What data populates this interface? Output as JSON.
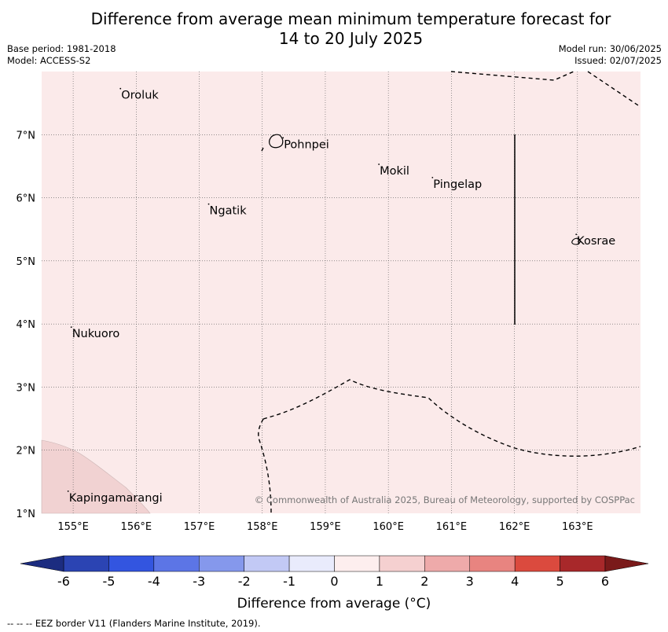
{
  "title_line1": "Difference from average mean minimum temperature forecast for",
  "title_line2": "14 to 20 July 2025",
  "base_period": "Base period: 1981-2018",
  "model": "Model: ACCESS-S2",
  "model_run": "Model run: 30/06/2025",
  "issued": "Issued: 02/07/2025",
  "copyright": "© Commonwealth of Australia 2025, Bureau of Meteorology, supported by COSPPac",
  "colorbar_label": "Difference from average (°C)",
  "footer_note": "--  --  -- EEZ border V11 (Flanders Marine Institute, 2019).",
  "map_extent": {
    "lon": [
      154.5,
      164.0
    ],
    "lat": [
      1.0,
      8.0
    ]
  },
  "lon_ticks": [
    "155°E",
    "156°E",
    "157°E",
    "158°E",
    "159°E",
    "160°E",
    "161°E",
    "162°E",
    "163°E"
  ],
  "lat_ticks": [
    "1°N",
    "2°N",
    "3°N",
    "4°N",
    "5°N",
    "6°N",
    "7°N"
  ],
  "places": [
    {
      "name": "Oroluk",
      "lon": 155.75,
      "lat": 7.63
    },
    {
      "name": "Pohnpei",
      "lon": 158.33,
      "lat": 6.85
    },
    {
      "name": "Mokil",
      "lon": 159.85,
      "lat": 6.43
    },
    {
      "name": "Pingelap",
      "lon": 160.7,
      "lat": 6.22
    },
    {
      "name": "Ngatik",
      "lon": 157.15,
      "lat": 5.8
    },
    {
      "name": "Kosrae",
      "lon": 162.98,
      "lat": 5.32
    },
    {
      "name": "Nukuoro",
      "lon": 154.97,
      "lat": 3.85
    },
    {
      "name": "Kapingamarangi",
      "lon": 154.92,
      "lat": 1.25
    }
  ],
  "colorbar": {
    "ticks": [
      "-6",
      "-5",
      "-4",
      "-3",
      "-2",
      "-1",
      "0",
      "1",
      "2",
      "3",
      "4",
      "5",
      "6"
    ],
    "colors": [
      "#2b44b3",
      "#3355e0",
      "#5c75e6",
      "#8598ec",
      "#c2c9f5",
      "#e9ebfc",
      "#fdeeee",
      "#f5d0d0",
      "#eeaaaa",
      "#e88480",
      "#db4a3e",
      "#a8282a"
    ],
    "under_color": "#1c2c80",
    "over_color": "#7a1a1a"
  },
  "colors": {
    "background_anomaly": "#fbeaea",
    "warm_patch": "#f1d2d2"
  }
}
